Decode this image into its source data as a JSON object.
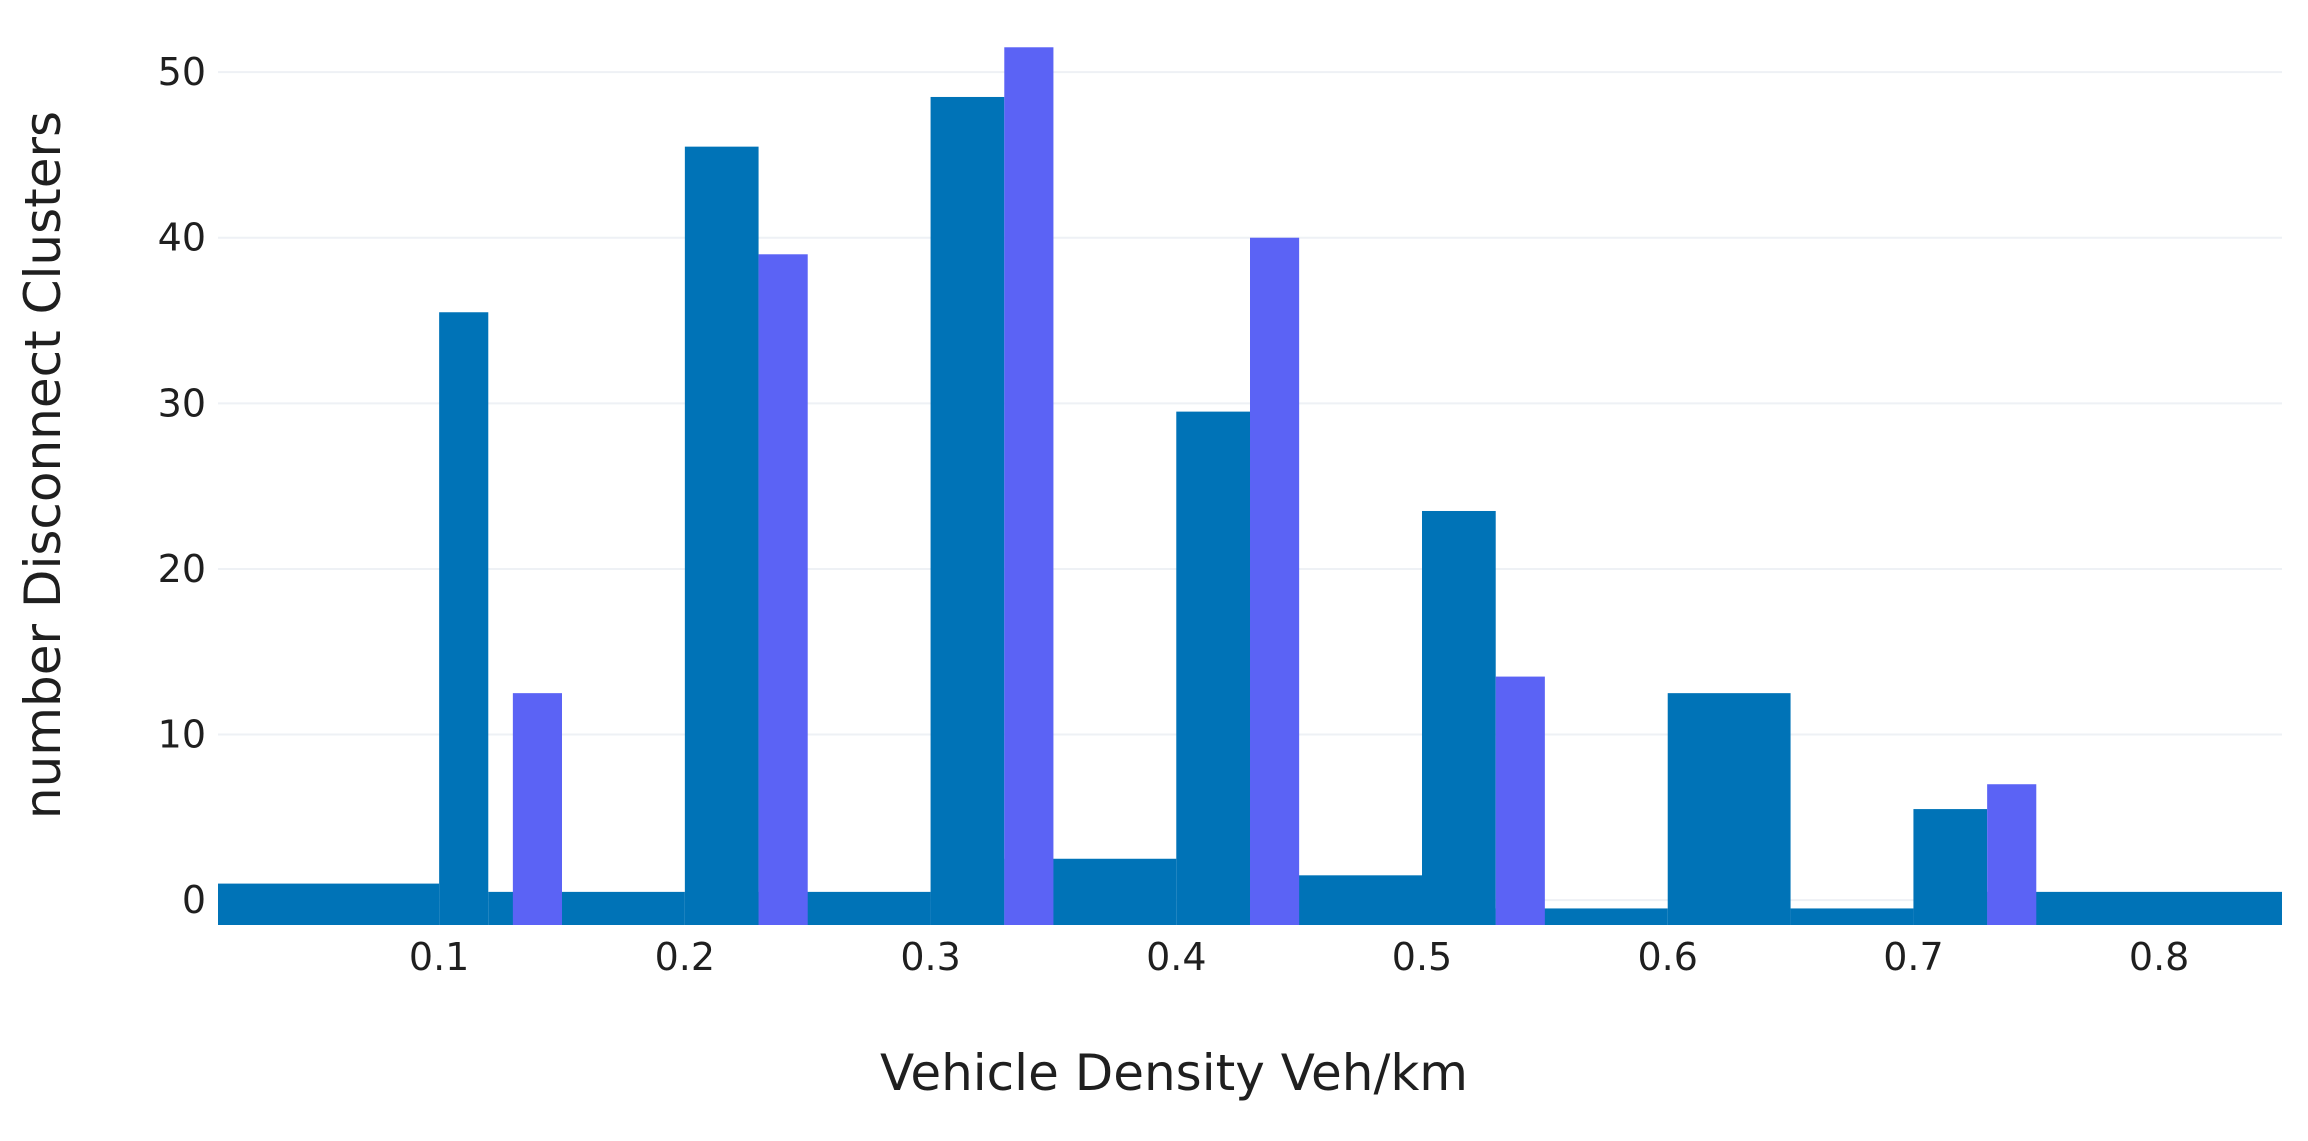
{
  "chart_data": {
    "type": "bar",
    "xlabel": "Vehicle Density Veh/km",
    "ylabel": "number Disconnect Clusters",
    "xlim": [
      0.01,
      0.85
    ],
    "ylim": [
      -1.5,
      52
    ],
    "x_ticks": [
      "0.1",
      "0.2",
      "0.3",
      "0.4",
      "0.5",
      "0.6",
      "0.7",
      "0.8"
    ],
    "y_ticks": [
      "0",
      "10",
      "20",
      "30",
      "40",
      "50"
    ],
    "grid": true,
    "colors": {
      "series_1": "#0073b7",
      "series_2": "#5b63f5"
    },
    "series": [
      {
        "color": "#0073b7",
        "bins": [
          {
            "x0": 0.01,
            "x1": 0.1,
            "value": 1
          },
          {
            "x0": 0.1,
            "x1": 0.12,
            "value": 35.5
          },
          {
            "x0": 0.12,
            "x1": 0.2,
            "value": 0.5
          },
          {
            "x0": 0.2,
            "x1": 0.23,
            "value": 45.5
          },
          {
            "x0": 0.23,
            "x1": 0.3,
            "value": 0.5
          },
          {
            "x0": 0.3,
            "x1": 0.33,
            "value": 48.5
          },
          {
            "x0": 0.33,
            "x1": 0.4,
            "value": 2.5
          },
          {
            "x0": 0.4,
            "x1": 0.43,
            "value": 29.5
          },
          {
            "x0": 0.43,
            "x1": 0.5,
            "value": 1.5
          },
          {
            "x0": 0.5,
            "x1": 0.53,
            "value": 23.5
          },
          {
            "x0": 0.53,
            "x1": 0.6,
            "value": -0.5
          },
          {
            "x0": 0.6,
            "x1": 0.65,
            "value": 12.5
          },
          {
            "x0": 0.65,
            "x1": 0.7,
            "value": -0.5
          },
          {
            "x0": 0.7,
            "x1": 0.73,
            "value": 5.5
          },
          {
            "x0": 0.73,
            "x1": 0.85,
            "value": 0.5
          }
        ]
      },
      {
        "color": "#5b63f5",
        "bins": [
          {
            "x0": 0.13,
            "x1": 0.15,
            "value": 12.5
          },
          {
            "x0": 0.23,
            "x1": 0.25,
            "value": 39
          },
          {
            "x0": 0.33,
            "x1": 0.35,
            "value": 51.5
          },
          {
            "x0": 0.43,
            "x1": 0.45,
            "value": 40
          },
          {
            "x0": 0.53,
            "x1": 0.55,
            "value": 13.5
          },
          {
            "x0": 0.73,
            "x1": 0.75,
            "value": 7
          }
        ]
      }
    ]
  }
}
